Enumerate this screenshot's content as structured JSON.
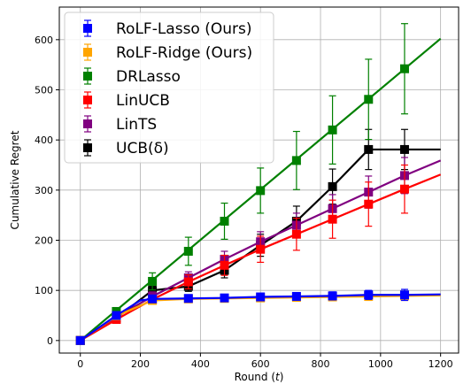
{
  "chart_data": {
    "type": "line",
    "xlabel": "Round (t)",
    "ylabel": "Cumulative Regret",
    "xlim": [
      -70,
      1260
    ],
    "ylim": [
      -25,
      665
    ],
    "xticks": [
      0,
      200,
      400,
      600,
      800,
      1000,
      1200
    ],
    "yticks": [
      0,
      100,
      200,
      300,
      400,
      500,
      600
    ],
    "grid": true,
    "legend_position": "upper-left",
    "series": [
      {
        "name": "RoLF-Lasso (Ours)",
        "color": "#0000ff",
        "marker_x": [
          0,
          120,
          240,
          360,
          480,
          600,
          720,
          840,
          960,
          1080
        ],
        "marker_y": [
          0,
          50,
          83,
          84,
          85,
          87,
          88,
          89,
          91,
          91
        ],
        "err": [
          0,
          6,
          6,
          6,
          6,
          6,
          7,
          8,
          9,
          11
        ],
        "line_x": [
          0,
          120,
          200,
          240,
          360,
          480,
          600,
          720,
          840,
          960,
          1080,
          1200
        ],
        "line_y": [
          0,
          50,
          80,
          83,
          84,
          85,
          87,
          88,
          89,
          91,
          91,
          92
        ]
      },
      {
        "name": "RoLF-Ridge (Ours)",
        "color": "#ffa500",
        "marker_x": [
          0,
          120,
          240,
          360,
          480,
          600,
          720,
          840,
          960,
          1080
        ],
        "marker_y": [
          0,
          49,
          80,
          83,
          84,
          85,
          86,
          87,
          88,
          89
        ],
        "err": [
          0,
          5,
          5,
          5,
          5,
          5,
          6,
          7,
          8,
          9
        ],
        "line_x": [
          0,
          120,
          240,
          360,
          480,
          600,
          720,
          840,
          960,
          1080,
          1200
        ],
        "line_y": [
          0,
          49,
          80,
          83,
          84,
          85,
          86,
          87,
          88,
          89,
          90
        ]
      },
      {
        "name": "DRLasso",
        "color": "#008000",
        "marker_x": [
          0,
          120,
          240,
          360,
          480,
          600,
          720,
          840,
          960,
          1080
        ],
        "marker_y": [
          0,
          58,
          118,
          178,
          238,
          299,
          359,
          420,
          481,
          542
        ],
        "err": [
          0,
          6,
          17,
          28,
          36,
          45,
          58,
          68,
          80,
          90
        ],
        "line_x": [
          0,
          1200
        ],
        "line_y": [
          0,
          602
        ]
      },
      {
        "name": "LinUCB",
        "color": "#ff0000",
        "marker_x": [
          0,
          120,
          240,
          360,
          480,
          600,
          720,
          840,
          960,
          1080
        ],
        "marker_y": [
          0,
          42,
          82,
          117,
          150,
          182,
          212,
          242,
          272,
          302
        ],
        "err": [
          0,
          4,
          8,
          14,
          20,
          26,
          32,
          38,
          44,
          48
        ],
        "line_x": [
          0,
          120,
          240,
          360,
          480,
          600,
          720,
          840,
          960,
          1080,
          1200
        ],
        "line_y": [
          0,
          42,
          82,
          117,
          150,
          182,
          212,
          242,
          272,
          302,
          331
        ]
      },
      {
        "name": "LinTS",
        "color": "#800080",
        "marker_x": [
          0,
          120,
          240,
          360,
          480,
          600,
          720,
          840,
          960,
          1080
        ],
        "marker_y": [
          0,
          47,
          88,
          125,
          162,
          197,
          230,
          263,
          296,
          329
        ],
        "err": [
          0,
          5,
          9,
          12,
          16,
          20,
          24,
          28,
          32,
          36
        ],
        "line_x": [
          0,
          120,
          240,
          360,
          480,
          600,
          720,
          840,
          960,
          1080,
          1200
        ],
        "line_y": [
          0,
          47,
          88,
          125,
          162,
          197,
          230,
          263,
          296,
          329,
          359
        ]
      },
      {
        "name": "UCB(δ)",
        "color": "#000000",
        "marker_x": [
          0,
          120,
          240,
          360,
          480,
          600,
          720,
          840,
          960,
          1080
        ],
        "marker_y": [
          0,
          45,
          100,
          108,
          140,
          190,
          238,
          307,
          381,
          381
        ],
        "err": [
          0,
          4,
          8,
          10,
          15,
          22,
          30,
          35,
          40,
          40
        ],
        "line_x": [
          0,
          120,
          240,
          360,
          480,
          600,
          720,
          840,
          960,
          1080,
          1200
        ],
        "line_y": [
          0,
          45,
          100,
          108,
          140,
          190,
          238,
          307,
          381,
          381,
          381
        ]
      }
    ]
  }
}
